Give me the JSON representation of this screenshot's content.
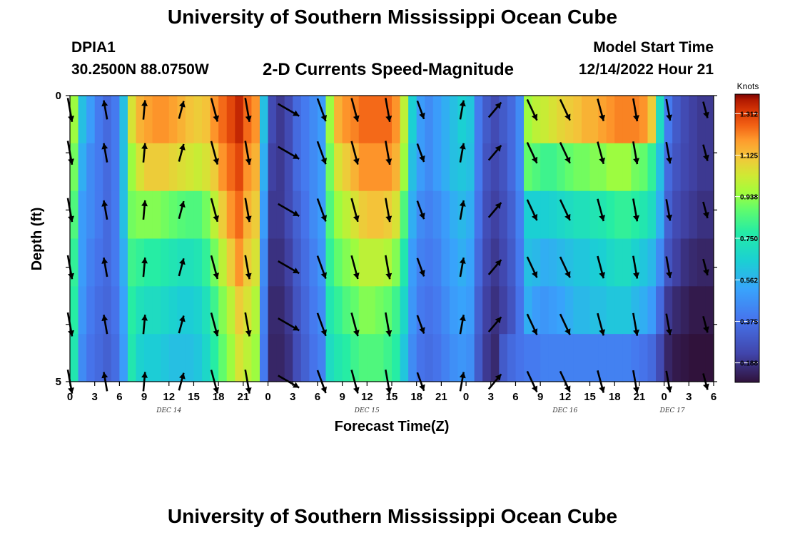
{
  "header": {
    "title": "University of Southern Mississippi Ocean Cube",
    "station_id": "DPIA1",
    "station_coords": "30.2500N  88.0750W",
    "chart_subtitle": "2-D Currents Speed-Magnitude",
    "model_start_label": "Model Start Time",
    "model_start_value": "12/14/2022 Hour 21"
  },
  "footer": {
    "title_repeat": "University of Southern Mississippi Ocean Cube"
  },
  "chart_data": {
    "type": "heatmap",
    "title": "2-D Currents Speed-Magnitude",
    "xlabel": "Forecast Time(Z)",
    "ylabel": "Depth (ft)",
    "colorbar_unit": "Knots",
    "colorbar_ticks": [
      "0.188",
      "0.375",
      "0.562",
      "0.750",
      "0.938",
      "1.125",
      "1.312"
    ],
    "colorbar_range": [
      0.1,
      1.4
    ],
    "x_hours_range": [
      0,
      78
    ],
    "x_tick_labels": [
      "0",
      "3",
      "6",
      "9",
      "12",
      "15",
      "18",
      "21",
      "0",
      "3",
      "6",
      "9",
      "12",
      "15",
      "18",
      "21",
      "0",
      "3",
      "6",
      "9",
      "12",
      "15",
      "18",
      "21",
      "0",
      "3",
      "6"
    ],
    "date_labels": [
      {
        "text": "DEC 14",
        "hour": 12
      },
      {
        "text": "DEC 15",
        "hour": 36
      },
      {
        "text": "DEC 16",
        "hour": 60
      },
      {
        "text": "DEC 17",
        "hour": 73
      }
    ],
    "y_range": [
      0,
      5
    ],
    "y_tick_labels": [
      {
        "value": 0,
        "label": "0"
      },
      {
        "value": 5,
        "label": "5"
      }
    ],
    "depth_layers": 5,
    "speed_knots_by_hour": [
      [
        0.95,
        0.6,
        0.5,
        0.4,
        0.35,
        0.4,
        0.6,
        1.05,
        1.15,
        1.18,
        1.2,
        1.2,
        1.18,
        1.15,
        1.12,
        1.1,
        1.12,
        1.2,
        1.25,
        1.3,
        1.35,
        1.25,
        1.2,
        0.6,
        0.25,
        0.2,
        0.25,
        0.35,
        0.4,
        0.45,
        0.5,
        0.95,
        1.15,
        1.2,
        1.22,
        1.25,
        1.25,
        1.25,
        1.25,
        1.2,
        1.0,
        0.65,
        0.5,
        0.45,
        0.5,
        0.55,
        0.6,
        0.65,
        0.62,
        0.4,
        0.3,
        0.25,
        0.3,
        0.35,
        0.45,
        0.95,
        1.0,
        1.02,
        1.05,
        1.08,
        1.1,
        1.12,
        1.15,
        1.15,
        1.18,
        1.2,
        1.22,
        1.22,
        1.22,
        1.2,
        1.1,
        0.7,
        0.4,
        0.3,
        0.25,
        0.22,
        0.2,
        0.2
      ],
      [
        0.9,
        0.55,
        0.45,
        0.4,
        0.35,
        0.4,
        0.6,
        0.95,
        1.05,
        1.1,
        1.1,
        1.1,
        1.08,
        1.06,
        1.04,
        1.02,
        1.05,
        1.1,
        1.2,
        1.25,
        1.3,
        1.2,
        1.15,
        0.55,
        0.22,
        0.2,
        0.25,
        0.35,
        0.4,
        0.45,
        0.5,
        0.9,
        1.05,
        1.1,
        1.15,
        1.2,
        1.2,
        1.2,
        1.2,
        1.15,
        0.95,
        0.6,
        0.5,
        0.45,
        0.5,
        0.55,
        0.6,
        0.62,
        0.6,
        0.4,
        0.28,
        0.24,
        0.28,
        0.35,
        0.45,
        0.88,
        0.85,
        0.82,
        0.82,
        0.85,
        0.88,
        0.9,
        0.9,
        0.92,
        0.92,
        0.95,
        0.95,
        0.95,
        0.9,
        0.88,
        0.8,
        0.6,
        0.35,
        0.28,
        0.24,
        0.22,
        0.2,
        0.2
      ],
      [
        0.85,
        0.5,
        0.45,
        0.4,
        0.35,
        0.4,
        0.6,
        0.9,
        0.92,
        0.92,
        0.92,
        0.9,
        0.88,
        0.86,
        0.85,
        0.85,
        0.9,
        1.0,
        1.1,
        1.2,
        1.25,
        1.15,
        1.1,
        0.5,
        0.2,
        0.2,
        0.25,
        0.32,
        0.38,
        0.45,
        0.5,
        0.85,
        0.95,
        1.0,
        1.05,
        1.1,
        1.12,
        1.12,
        1.1,
        1.05,
        0.85,
        0.55,
        0.45,
        0.42,
        0.45,
        0.5,
        0.55,
        0.58,
        0.55,
        0.38,
        0.26,
        0.22,
        0.26,
        0.32,
        0.42,
        0.65,
        0.65,
        0.65,
        0.66,
        0.68,
        0.7,
        0.72,
        0.72,
        0.74,
        0.75,
        0.78,
        0.8,
        0.8,
        0.78,
        0.75,
        0.7,
        0.55,
        0.32,
        0.25,
        0.22,
        0.2,
        0.18,
        0.18
      ],
      [
        0.8,
        0.5,
        0.42,
        0.38,
        0.35,
        0.4,
        0.55,
        0.82,
        0.8,
        0.78,
        0.78,
        0.76,
        0.74,
        0.72,
        0.72,
        0.74,
        0.8,
        0.9,
        1.0,
        1.1,
        1.2,
        1.1,
        1.05,
        0.45,
        0.18,
        0.18,
        0.22,
        0.3,
        0.36,
        0.42,
        0.48,
        0.8,
        0.88,
        0.92,
        0.95,
        1.0,
        1.0,
        1.0,
        0.98,
        0.92,
        0.75,
        0.5,
        0.42,
        0.4,
        0.42,
        0.48,
        0.52,
        0.55,
        0.52,
        0.35,
        0.24,
        0.2,
        0.24,
        0.3,
        0.4,
        0.6,
        0.58,
        0.55,
        0.56,
        0.58,
        0.6,
        0.62,
        0.62,
        0.64,
        0.65,
        0.68,
        0.7,
        0.7,
        0.66,
        0.62,
        0.58,
        0.45,
        0.28,
        0.22,
        0.18,
        0.16,
        0.15,
        0.15
      ],
      [
        0.78,
        0.48,
        0.4,
        0.36,
        0.34,
        0.38,
        0.52,
        0.78,
        0.72,
        0.7,
        0.7,
        0.68,
        0.66,
        0.64,
        0.64,
        0.66,
        0.72,
        0.82,
        0.92,
        1.0,
        1.1,
        1.05,
        0.98,
        0.42,
        0.16,
        0.16,
        0.2,
        0.28,
        0.34,
        0.4,
        0.45,
        0.75,
        0.8,
        0.85,
        0.88,
        0.92,
        0.92,
        0.9,
        0.88,
        0.82,
        0.68,
        0.48,
        0.4,
        0.38,
        0.4,
        0.45,
        0.5,
        0.52,
        0.5,
        0.32,
        0.22,
        0.18,
        0.22,
        0.28,
        0.38,
        0.55,
        0.5,
        0.48,
        0.5,
        0.52,
        0.55,
        0.58,
        0.58,
        0.6,
        0.6,
        0.62,
        0.62,
        0.62,
        0.58,
        0.55,
        0.5,
        0.35,
        0.2,
        0.16,
        0.14,
        0.12,
        0.12,
        0.12
      ],
      [
        0.75,
        0.45,
        0.38,
        0.35,
        0.32,
        0.36,
        0.5,
        0.75,
        0.66,
        0.64,
        0.64,
        0.62,
        0.6,
        0.6,
        0.6,
        0.62,
        0.68,
        0.78,
        0.88,
        0.95,
        1.05,
        1.0,
        0.95,
        0.4,
        0.15,
        0.15,
        0.18,
        0.26,
        0.32,
        0.38,
        0.42,
        0.7,
        0.75,
        0.78,
        0.82,
        0.85,
        0.85,
        0.85,
        0.82,
        0.78,
        0.62,
        0.45,
        0.38,
        0.36,
        0.38,
        0.42,
        0.46,
        0.48,
        0.46,
        0.3,
        0.2,
        0.16,
        0.3,
        0.35,
        0.38,
        0.4,
        0.4,
        0.42,
        0.42,
        0.42,
        0.42,
        0.42,
        0.42,
        0.42,
        0.42,
        0.42,
        0.42,
        0.42,
        0.4,
        0.38,
        0.35,
        0.25,
        0.15,
        0.12,
        0.11,
        0.1,
        0.1,
        0.1
      ]
    ],
    "vectors_angle_deg": [
      {
        "hour": 0,
        "angle": 170,
        "len": 1
      },
      {
        "hour": 4.3,
        "angle": 350,
        "len": 0.8
      },
      {
        "hour": 9,
        "angle": 5,
        "len": 0.8
      },
      {
        "hour": 13.5,
        "angle": 15,
        "len": 0.75
      },
      {
        "hour": 17.5,
        "angle": 165,
        "len": 1
      },
      {
        "hour": 21.5,
        "angle": 170,
        "len": 1
      },
      {
        "hour": 26.5,
        "angle": 120,
        "len": 1
      },
      {
        "hour": 30.5,
        "angle": 160,
        "len": 1
      },
      {
        "hour": 34.5,
        "angle": 165,
        "len": 1
      },
      {
        "hour": 38.5,
        "angle": 170,
        "len": 1
      },
      {
        "hour": 42.5,
        "angle": 160,
        "len": 0.8
      },
      {
        "hour": 47.5,
        "angle": 10,
        "len": 0.8
      },
      {
        "hour": 51.5,
        "angle": 40,
        "len": 0.8
      },
      {
        "hour": 56,
        "angle": 155,
        "len": 0.95
      },
      {
        "hour": 60,
        "angle": 155,
        "len": 0.95
      },
      {
        "hour": 64.3,
        "angle": 165,
        "len": 0.95
      },
      {
        "hour": 68.5,
        "angle": 170,
        "len": 0.95
      },
      {
        "hour": 72.5,
        "angle": 170,
        "len": 0.9
      },
      {
        "hour": 77,
        "angle": 165,
        "len": 0.7
      }
    ],
    "vector_depths": [
      0.25,
      1.0,
      2.0,
      3.0,
      4.0,
      5.0
    ]
  }
}
